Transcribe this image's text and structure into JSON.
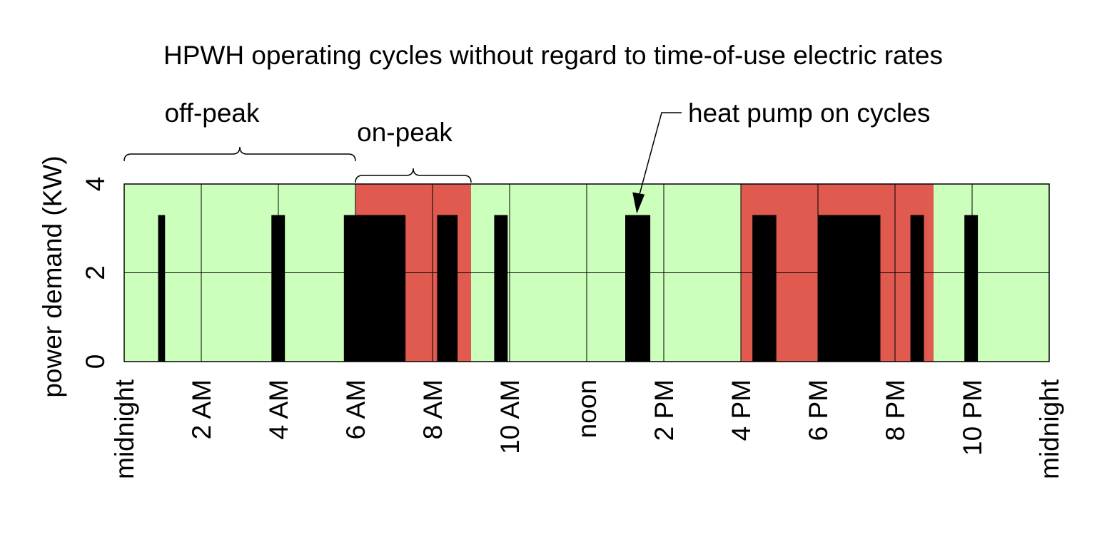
{
  "chart_data": {
    "type": "bar",
    "title": "HPWH operating cycles without regard to time-of-use electric rates",
    "xlabel": "",
    "ylabel": "power demand (KW)",
    "xlim": [
      0,
      24
    ],
    "ylim": [
      0,
      4
    ],
    "x_unit": "hours since midnight",
    "y_ticks": [
      {
        "value": 0,
        "label": "0"
      },
      {
        "value": 2,
        "label": "2"
      },
      {
        "value": 4,
        "label": "4"
      }
    ],
    "x_ticks": [
      {
        "value": 0,
        "label": "midnight"
      },
      {
        "value": 2,
        "label": "2 AM"
      },
      {
        "value": 4,
        "label": "4 AM"
      },
      {
        "value": 6,
        "label": "6 AM"
      },
      {
        "value": 8,
        "label": "8 AM"
      },
      {
        "value": 10,
        "label": "10 AM"
      },
      {
        "value": 12,
        "label": "noon"
      },
      {
        "value": 14,
        "label": "2 PM"
      },
      {
        "value": 16,
        "label": "4 PM"
      },
      {
        "value": 18,
        "label": "6 PM"
      },
      {
        "value": 20,
        "label": "8 PM"
      },
      {
        "value": 22,
        "label": "10 PM"
      },
      {
        "value": 24,
        "label": "midnight"
      }
    ],
    "grid": true,
    "rate_periods": [
      {
        "name": "off-peak",
        "start": 0,
        "end": 6,
        "color": "#ccffbb"
      },
      {
        "name": "on-peak",
        "start": 6,
        "end": 9,
        "color": "#e05a4f"
      },
      {
        "name": "off-peak",
        "start": 9,
        "end": 16,
        "color": "#ccffbb"
      },
      {
        "name": "on-peak",
        "start": 16,
        "end": 21,
        "color": "#e05a4f"
      },
      {
        "name": "off-peak",
        "start": 21,
        "end": 24,
        "color": "#ccffbb"
      }
    ],
    "series": [
      {
        "name": "heat pump on cycles",
        "color": "#000000",
        "cycles": [
          {
            "start": 0.88,
            "end": 1.06,
            "kw": 3.3
          },
          {
            "start": 3.82,
            "end": 4.17,
            "kw": 3.3
          },
          {
            "start": 5.7,
            "end": 7.3,
            "kw": 3.3
          },
          {
            "start": 8.12,
            "end": 8.65,
            "kw": 3.3
          },
          {
            "start": 9.6,
            "end": 9.95,
            "kw": 3.3
          },
          {
            "start": 13.0,
            "end": 13.65,
            "kw": 3.3
          },
          {
            "start": 16.3,
            "end": 16.92,
            "kw": 3.3
          },
          {
            "start": 18.0,
            "end": 19.62,
            "kw": 3.3
          },
          {
            "start": 20.4,
            "end": 20.75,
            "kw": 3.3
          },
          {
            "start": 21.8,
            "end": 22.15,
            "kw": 3.3
          }
        ]
      }
    ],
    "annotations": [
      {
        "text": "off-peak",
        "type": "brace",
        "start": 0,
        "end": 6
      },
      {
        "text": "on-peak",
        "type": "brace",
        "start": 6,
        "end": 9
      },
      {
        "text": "heat pump on cycles",
        "type": "arrow",
        "target_x": 13.3,
        "target_y": 3.3
      }
    ]
  }
}
